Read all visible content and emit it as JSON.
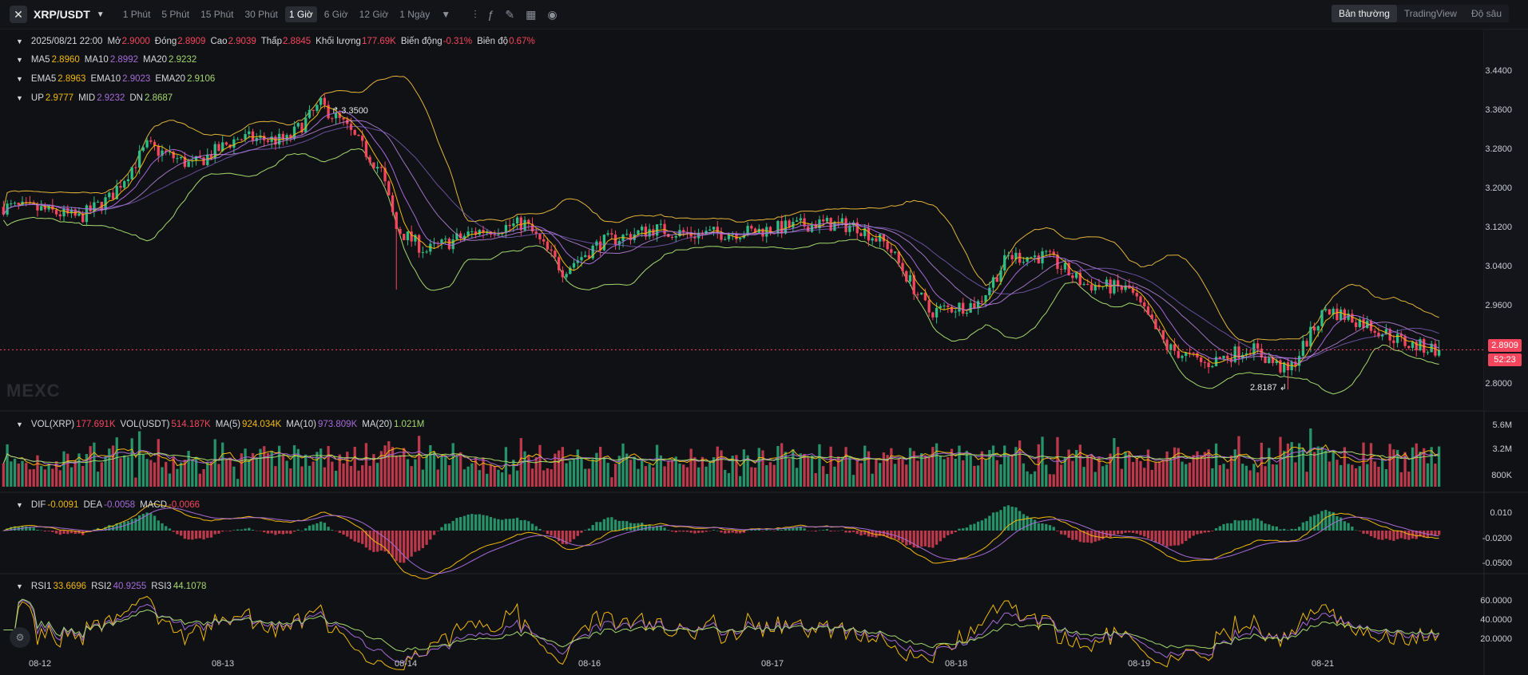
{
  "toolbar": {
    "symbol": "XRP/USDT",
    "intervals": [
      "1 Phút",
      "5 Phút",
      "15 Phút",
      "30 Phút",
      "1 Giờ",
      "6 Giờ",
      "12 Giờ",
      "1 Ngày"
    ],
    "active_interval": "1 Giờ",
    "view_modes": [
      "Bản thường",
      "TradingView",
      "Độ sâu"
    ],
    "active_view": "Bản thường",
    "tool_icons": [
      "candle-settings-icon",
      "indicator-icon",
      "draw-pen-icon",
      "layout-grid-icon",
      "camera-icon"
    ]
  },
  "ohlc": {
    "time": "2025/08/21 22:00",
    "open_label": "Mở",
    "open": "2.9000",
    "close_label": "Đóng",
    "close": "2.8909",
    "high_label": "Cao",
    "high": "2.9039",
    "low_label": "Thấp",
    "low": "2.8845",
    "volume_label": "Khối lượng",
    "volume": "177.69K",
    "change_label": "Biến động",
    "change": "-0.31%",
    "amplitude_label": "Biên độ",
    "amplitude": "0.67%"
  },
  "ma": {
    "ma5_label": "MA5",
    "ma5": "2.8960",
    "ma10_label": "MA10",
    "ma10": "2.8992",
    "ma20_label": "MA20",
    "ma20": "2.9232"
  },
  "ema": {
    "ema5_label": "EMA5",
    "ema5": "2.8963",
    "ema10_label": "EMA10",
    "ema10": "2.9023",
    "ema20_label": "EMA20",
    "ema20": "2.9106"
  },
  "boll": {
    "up_label": "UP",
    "up": "2.9777",
    "mid_label": "MID",
    "mid": "2.9232",
    "dn_label": "DN",
    "dn": "2.8687"
  },
  "vol": {
    "vol_xrp_label": "VOL(XRP)",
    "vol_xrp": "177.691K",
    "vol_usdt_label": "VOL(USDT)",
    "vol_usdt": "514.187K",
    "ma5_label": "MA(5)",
    "ma5": "924.034K",
    "ma10_label": "MA(10)",
    "ma10": "973.809K",
    "ma20_label": "MA(20)",
    "ma20": "1.021M"
  },
  "macd": {
    "dif_label": "DIF",
    "dif": "-0.0091",
    "dea_label": "DEA",
    "dea": "-0.0058",
    "macd_label": "MACD",
    "macd": "-0.0066"
  },
  "rsi": {
    "rsi1_label": "RSI1",
    "rsi1": "33.6696",
    "rsi2_label": "RSI2",
    "rsi2": "40.9255",
    "rsi3_label": "RSI3",
    "rsi3": "44.1078"
  },
  "price_axis": [
    "3.4400",
    "3.3600",
    "3.2800",
    "3.2000",
    "3.1200",
    "3.0400",
    "2.9600",
    "2.8800"
  ],
  "price_axis_extra": "2.8000",
  "vol_axis": [
    "5.6M",
    "3.2M",
    "800K"
  ],
  "macd_axis": [
    "0.010",
    "-0.0200",
    "-0.0500"
  ],
  "rsi_axis": [
    "60.0000",
    "40.0000",
    "20.0000"
  ],
  "current_price": "2.8909",
  "countdown": "52:23",
  "high_marker": "3.3500",
  "low_marker": "2.8187",
  "dates": [
    "08-12",
    "08-13",
    "08-14",
    "08-16",
    "08-17",
    "08-18",
    "08-19",
    "08-21"
  ],
  "watermark": "MEXC",
  "colors": {
    "up": "#2ebd85",
    "down": "#f6465d",
    "ma5": "#f0b90b",
    "ma10": "#a66bd8",
    "ma20": "#a5d86e",
    "boll": "#e0b43a"
  },
  "chart_data": {
    "type": "candlestick",
    "anchors": [
      {
        "i": 0,
        "p": 3.15
      },
      {
        "i": 10,
        "p": 3.145
      },
      {
        "i": 20,
        "p": 3.13
      },
      {
        "i": 28,
        "p": 3.165
      },
      {
        "i": 38,
        "p": 3.26
      },
      {
        "i": 50,
        "p": 3.225
      },
      {
        "i": 62,
        "p": 3.275
      },
      {
        "i": 75,
        "p": 3.27
      },
      {
        "i": 84,
        "p": 3.335
      },
      {
        "i": 90,
        "p": 3.3
      },
      {
        "i": 100,
        "p": 3.215
      },
      {
        "i": 104,
        "p": 3.11
      },
      {
        "i": 112,
        "p": 3.07
      },
      {
        "i": 125,
        "p": 3.105
      },
      {
        "i": 138,
        "p": 3.12
      },
      {
        "i": 148,
        "p": 3.035
      },
      {
        "i": 158,
        "p": 3.085
      },
      {
        "i": 172,
        "p": 3.11
      },
      {
        "i": 182,
        "p": 3.1
      },
      {
        "i": 198,
        "p": 3.105
      },
      {
        "i": 215,
        "p": 3.12
      },
      {
        "i": 226,
        "p": 3.115
      },
      {
        "i": 234,
        "p": 3.08
      },
      {
        "i": 245,
        "p": 2.96
      },
      {
        "i": 258,
        "p": 2.975
      },
      {
        "i": 266,
        "p": 3.06
      },
      {
        "i": 276,
        "p": 3.06
      },
      {
        "i": 286,
        "p": 3.01
      },
      {
        "i": 298,
        "p": 3.0
      },
      {
        "i": 308,
        "p": 2.895
      },
      {
        "i": 318,
        "p": 2.865
      },
      {
        "i": 330,
        "p": 2.895
      },
      {
        "i": 340,
        "p": 2.85
      },
      {
        "i": 350,
        "p": 2.965
      },
      {
        "i": 360,
        "p": 2.94
      },
      {
        "i": 372,
        "p": 2.9
      },
      {
        "i": 380,
        "p": 2.891
      }
    ],
    "candle_count": 381,
    "ylim": [
      2.78,
      3.46
    ]
  }
}
